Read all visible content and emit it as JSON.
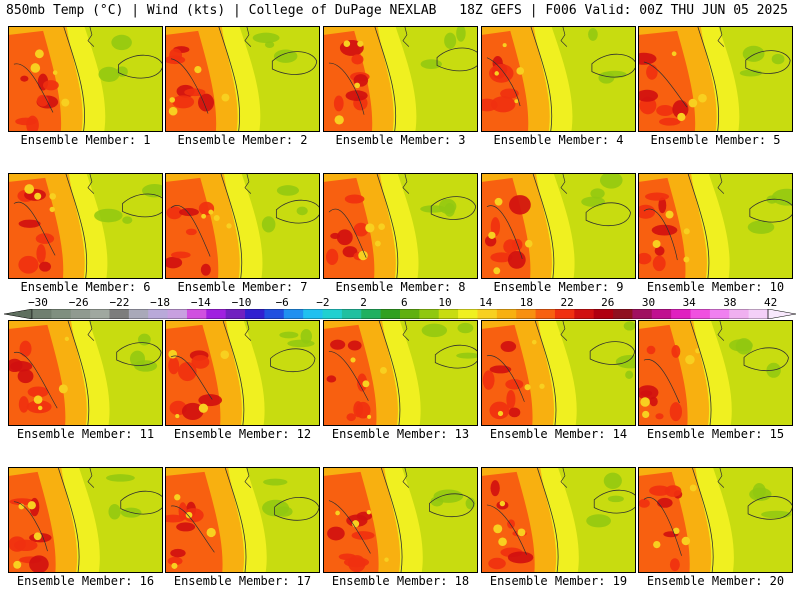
{
  "header": {
    "left_title": "850mb Temp (°C) | Wind (kts) | College of DuPage NEXLAB",
    "right_title": "18Z GEFS | F006 Valid: 00Z THU JUN 05 2025"
  },
  "panels": [
    {
      "caption": "Ensemble Member: 1"
    },
    {
      "caption": "Ensemble Member: 2"
    },
    {
      "caption": "Ensemble Member: 3"
    },
    {
      "caption": "Ensemble Member: 4"
    },
    {
      "caption": "Ensemble Member: 5"
    },
    {
      "caption": "Ensemble Member: 6"
    },
    {
      "caption": "Ensemble Member: 7"
    },
    {
      "caption": "Ensemble Member: 8"
    },
    {
      "caption": "Ensemble Member: 9"
    },
    {
      "caption": "Ensemble Member: 10"
    },
    {
      "caption": "Ensemble Member: 11"
    },
    {
      "caption": "Ensemble Member: 12"
    },
    {
      "caption": "Ensemble Member: 13"
    },
    {
      "caption": "Ensemble Member: 14"
    },
    {
      "caption": "Ensemble Member: 15"
    },
    {
      "caption": "Ensemble Member: 16"
    },
    {
      "caption": "Ensemble Member: 17"
    },
    {
      "caption": "Ensemble Member: 18"
    },
    {
      "caption": "Ensemble Member: 19"
    },
    {
      "caption": "Ensemble Member: 20"
    }
  ],
  "colorbar": {
    "tick_labels": [
      "−30",
      "−26",
      "−22",
      "−18",
      "−14",
      "−10",
      "−6",
      "−2",
      "2",
      "6",
      "10",
      "14",
      "18",
      "22",
      "26",
      "30",
      "34",
      "38",
      "42"
    ],
    "colors": [
      "#6f7f6f",
      "#7f8f7f",
      "#909a90",
      "#a0a8a0",
      "#7d7d7d",
      "#a9a9b9",
      "#b9a9d9",
      "#c8a0e0",
      "#d050e0",
      "#a020e0",
      "#7020c0",
      "#3020d0",
      "#2050e0",
      "#2090f0",
      "#20c0f0",
      "#20d0d0",
      "#20c0a0",
      "#20b060",
      "#30a020",
      "#60b010",
      "#90c810",
      "#c8dc10",
      "#f0f020",
      "#f8d020",
      "#f8b010",
      "#f89010",
      "#f86010",
      "#f03010",
      "#d01010",
      "#b00010",
      "#901020",
      "#a01060",
      "#c01090",
      "#e020c0",
      "#f050e0",
      "#f080f0",
      "#f0b0f0",
      "#f4d0f8"
    ]
  }
}
